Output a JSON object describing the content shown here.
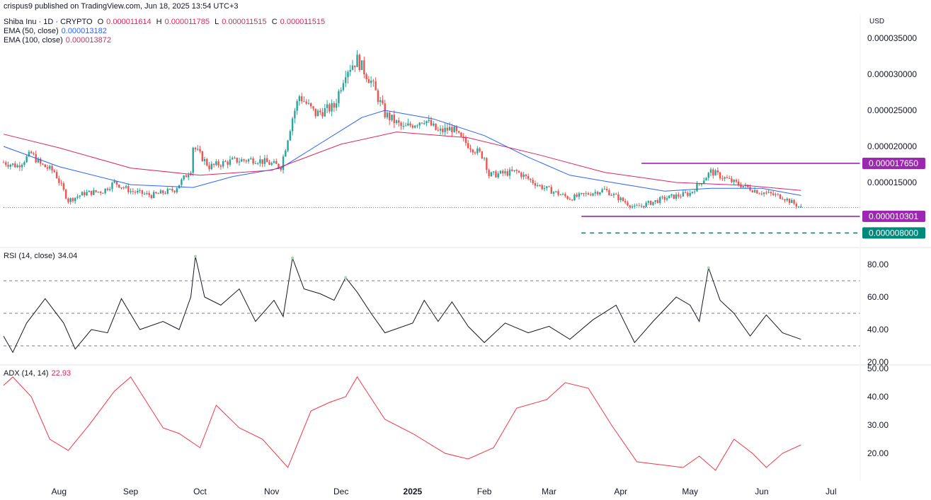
{
  "publish_line": "crispus9 published on TradingView.com, Jun 18, 2025 13:54 UTC+3",
  "symbol": "Shiba Inu · 1D · CRYPTO",
  "ohlc": {
    "o_label": "O",
    "o": "0.000011614",
    "h_label": "H",
    "h": "0.000011785",
    "l_label": "L",
    "l": "0.000011515",
    "c_label": "C",
    "c": "0.000011515"
  },
  "ema50": {
    "label": "EMA (50, close)",
    "value": "0.000013182",
    "color": "#2962ff"
  },
  "ema100": {
    "label": "EMA (100, close)",
    "value": "0.000013872",
    "color": "#e0245e"
  },
  "currency": "USD",
  "rsi": {
    "label": "RSI (14, close)",
    "value": "34.04",
    "color": "#131722"
  },
  "adx": {
    "label": "ADX (14, 14)",
    "value": "22.93",
    "color": "#f23645"
  },
  "colors": {
    "up": "#26a69a",
    "down": "#ef5350",
    "magenta": "#9c27b0",
    "green_level": "#00897b"
  },
  "chart_data": [
    {
      "type": "candlestick",
      "title": "Shiba Inu · 1D · CRYPTO",
      "ylabel": "USD",
      "y_ticks": [
        "0.000035000",
        "0.000030000",
        "0.000025000",
        "0.000020000",
        "0.000015000"
      ],
      "ylim": [
        6.5e-06,
        3.55e-05
      ],
      "x_ticks": [
        "Aug",
        "Sep",
        "Oct",
        "Nov",
        "Dec",
        "2025",
        "Feb",
        "Mar",
        "Apr",
        "May",
        "Jun",
        "Jul"
      ],
      "x_ticks_dates": [
        "2024-08-01",
        "2024-09-01",
        "2024-10-01",
        "2024-11-01",
        "2024-12-01",
        "2025-01-01",
        "2025-02-01",
        "2025-03-01",
        "2025-04-01",
        "2025-05-01",
        "2025-06-01",
        "2025-07-01"
      ],
      "x_range": [
        "2024-07-08",
        "2025-07-13"
      ],
      "price_path": [
        {
          "date": "2024-07-08",
          "price": 1.78e-05
        },
        {
          "date": "2024-07-14",
          "price": 1.73e-05
        },
        {
          "date": "2024-07-20",
          "price": 1.9e-05
        },
        {
          "date": "2024-07-24",
          "price": 1.75e-05
        },
        {
          "date": "2024-07-30",
          "price": 1.65e-05
        },
        {
          "date": "2024-08-03",
          "price": 1.38e-05
        },
        {
          "date": "2024-08-05",
          "price": 1.25e-05
        },
        {
          "date": "2024-08-12",
          "price": 1.35e-05
        },
        {
          "date": "2024-08-20",
          "price": 1.38e-05
        },
        {
          "date": "2024-08-25",
          "price": 1.5e-05
        },
        {
          "date": "2024-09-01",
          "price": 1.38e-05
        },
        {
          "date": "2024-09-10",
          "price": 1.32e-05
        },
        {
          "date": "2024-09-20",
          "price": 1.4e-05
        },
        {
          "date": "2024-09-27",
          "price": 1.68e-05
        },
        {
          "date": "2024-09-28",
          "price": 2e-05
        },
        {
          "date": "2024-10-05",
          "price": 1.72e-05
        },
        {
          "date": "2024-10-15",
          "price": 1.8e-05
        },
        {
          "date": "2024-10-25",
          "price": 1.82e-05
        },
        {
          "date": "2024-11-05",
          "price": 1.72e-05
        },
        {
          "date": "2024-11-10",
          "price": 2.4e-05
        },
        {
          "date": "2024-11-13",
          "price": 2.7e-05
        },
        {
          "date": "2024-11-20",
          "price": 2.45e-05
        },
        {
          "date": "2024-11-28",
          "price": 2.55e-05
        },
        {
          "date": "2024-12-03",
          "price": 3.05e-05
        },
        {
          "date": "2024-12-08",
          "price": 3.2e-05
        },
        {
          "date": "2024-12-14",
          "price": 2.9e-05
        },
        {
          "date": "2024-12-20",
          "price": 2.45e-05
        },
        {
          "date": "2024-12-28",
          "price": 2.25e-05
        },
        {
          "date": "2025-01-06",
          "price": 2.38e-05
        },
        {
          "date": "2025-01-12",
          "price": 2.2e-05
        },
        {
          "date": "2025-01-18",
          "price": 2.25e-05
        },
        {
          "date": "2025-01-22",
          "price": 2.1e-05
        },
        {
          "date": "2025-02-01",
          "price": 1.85e-05
        },
        {
          "date": "2025-02-03",
          "price": 1.6e-05
        },
        {
          "date": "2025-02-15",
          "price": 1.65e-05
        },
        {
          "date": "2025-02-25",
          "price": 1.45e-05
        },
        {
          "date": "2025-03-10",
          "price": 1.28e-05
        },
        {
          "date": "2025-03-25",
          "price": 1.4e-05
        },
        {
          "date": "2025-04-07",
          "price": 1.15e-05
        },
        {
          "date": "2025-04-20",
          "price": 1.28e-05
        },
        {
          "date": "2025-05-01",
          "price": 1.35e-05
        },
        {
          "date": "2025-05-10",
          "price": 1.65e-05
        },
        {
          "date": "2025-05-20",
          "price": 1.5e-05
        },
        {
          "date": "2025-05-30",
          "price": 1.38e-05
        },
        {
          "date": "2025-06-10",
          "price": 1.3e-05
        },
        {
          "date": "2025-06-18",
          "price": 1.15e-05
        }
      ],
      "ema50_path": [
        {
          "date": "2024-07-08",
          "price": 2e-05
        },
        {
          "date": "2024-08-01",
          "price": 1.72e-05
        },
        {
          "date": "2024-09-01",
          "price": 1.47e-05
        },
        {
          "date": "2024-09-28",
          "price": 1.43e-05
        },
        {
          "date": "2024-10-15",
          "price": 1.58e-05
        },
        {
          "date": "2024-11-05",
          "price": 1.7e-05
        },
        {
          "date": "2024-11-20",
          "price": 2e-05
        },
        {
          "date": "2024-12-10",
          "price": 2.4e-05
        },
        {
          "date": "2024-12-20",
          "price": 2.5e-05
        },
        {
          "date": "2025-01-10",
          "price": 2.38e-05
        },
        {
          "date": "2025-02-01",
          "price": 2.15e-05
        },
        {
          "date": "2025-02-20",
          "price": 1.85e-05
        },
        {
          "date": "2025-03-10",
          "price": 1.6e-05
        },
        {
          "date": "2025-04-01",
          "price": 1.48e-05
        },
        {
          "date": "2025-04-20",
          "price": 1.38e-05
        },
        {
          "date": "2025-05-10",
          "price": 1.42e-05
        },
        {
          "date": "2025-06-01",
          "price": 1.42e-05
        },
        {
          "date": "2025-06-18",
          "price": 1.32e-05
        }
      ],
      "ema100_path": [
        {
          "date": "2024-07-08",
          "price": 2.17e-05
        },
        {
          "date": "2024-08-01",
          "price": 1.98e-05
        },
        {
          "date": "2024-09-01",
          "price": 1.7e-05
        },
        {
          "date": "2024-10-01",
          "price": 1.6e-05
        },
        {
          "date": "2024-11-01",
          "price": 1.67e-05
        },
        {
          "date": "2024-12-01",
          "price": 2.03e-05
        },
        {
          "date": "2024-12-25",
          "price": 2.2e-05
        },
        {
          "date": "2025-01-25",
          "price": 2.12e-05
        },
        {
          "date": "2025-02-25",
          "price": 1.88e-05
        },
        {
          "date": "2025-03-25",
          "price": 1.64e-05
        },
        {
          "date": "2025-04-25",
          "price": 1.5e-05
        },
        {
          "date": "2025-05-25",
          "price": 1.46e-05
        },
        {
          "date": "2025-06-18",
          "price": 1.39e-05
        }
      ],
      "current_price": 1.1515e-05,
      "levels": [
        {
          "price": 1.765e-05,
          "label": "0.000017650",
          "style": "solid",
          "color": "#9c27b0",
          "from": "2025-04-10"
        },
        {
          "price": 1.0301e-05,
          "label": "0.000010301",
          "style": "solid",
          "color": "#9c27b0",
          "from": "2025-03-15"
        },
        {
          "price": 8e-06,
          "label": "0.000008000",
          "style": "dashed",
          "color": "#00897b",
          "from": "2025-03-15"
        }
      ]
    },
    {
      "type": "line",
      "title": "RSI (14, close)",
      "y_ticks": [
        "80.00",
        "60.00",
        "40.00",
        "20.00"
      ],
      "ylim": [
        20,
        84
      ],
      "bands": [
        70,
        50,
        30
      ],
      "points": [
        {
          "date": "2024-07-08",
          "y": 36
        },
        {
          "date": "2024-07-12",
          "y": 26
        },
        {
          "date": "2024-07-18",
          "y": 44
        },
        {
          "date": "2024-07-26",
          "y": 59
        },
        {
          "date": "2024-08-03",
          "y": 44
        },
        {
          "date": "2024-08-08",
          "y": 28
        },
        {
          "date": "2024-08-15",
          "y": 40
        },
        {
          "date": "2024-08-22",
          "y": 38
        },
        {
          "date": "2024-08-28",
          "y": 59
        },
        {
          "date": "2024-09-05",
          "y": 40
        },
        {
          "date": "2024-09-15",
          "y": 45
        },
        {
          "date": "2024-09-22",
          "y": 40
        },
        {
          "date": "2024-09-27",
          "y": 60
        },
        {
          "date": "2024-09-29",
          "y": 85
        },
        {
          "date": "2024-10-03",
          "y": 60
        },
        {
          "date": "2024-10-10",
          "y": 55
        },
        {
          "date": "2024-10-18",
          "y": 65
        },
        {
          "date": "2024-10-25",
          "y": 45
        },
        {
          "date": "2024-11-02",
          "y": 58
        },
        {
          "date": "2024-11-06",
          "y": 48
        },
        {
          "date": "2024-11-10",
          "y": 84
        },
        {
          "date": "2024-11-15",
          "y": 65
        },
        {
          "date": "2024-11-22",
          "y": 62
        },
        {
          "date": "2024-11-28",
          "y": 58
        },
        {
          "date": "2024-12-03",
          "y": 72
        },
        {
          "date": "2024-12-08",
          "y": 63
        },
        {
          "date": "2024-12-14",
          "y": 50
        },
        {
          "date": "2024-12-20",
          "y": 38
        },
        {
          "date": "2025-01-01",
          "y": 44
        },
        {
          "date": "2025-01-06",
          "y": 58
        },
        {
          "date": "2025-01-12",
          "y": 45
        },
        {
          "date": "2025-01-18",
          "y": 57
        },
        {
          "date": "2025-01-25",
          "y": 42
        },
        {
          "date": "2025-02-01",
          "y": 32
        },
        {
          "date": "2025-02-10",
          "y": 44
        },
        {
          "date": "2025-02-20",
          "y": 38
        },
        {
          "date": "2025-03-01",
          "y": 42
        },
        {
          "date": "2025-03-10",
          "y": 34
        },
        {
          "date": "2025-03-20",
          "y": 46
        },
        {
          "date": "2025-03-30",
          "y": 55
        },
        {
          "date": "2025-04-07",
          "y": 32
        },
        {
          "date": "2025-04-15",
          "y": 45
        },
        {
          "date": "2025-04-25",
          "y": 60
        },
        {
          "date": "2025-05-01",
          "y": 55
        },
        {
          "date": "2025-05-05",
          "y": 45
        },
        {
          "date": "2025-05-09",
          "y": 78
        },
        {
          "date": "2025-05-14",
          "y": 58
        },
        {
          "date": "2025-05-20",
          "y": 50
        },
        {
          "date": "2025-05-27",
          "y": 36
        },
        {
          "date": "2025-06-03",
          "y": 49
        },
        {
          "date": "2025-06-10",
          "y": 38
        },
        {
          "date": "2025-06-18",
          "y": 34
        }
      ]
    },
    {
      "type": "line",
      "title": "ADX (14, 14)",
      "y_ticks": [
        "50.00",
        "40.00",
        "30.00",
        "20.00"
      ],
      "ylim": [
        9.5,
        50.5
      ],
      "points": [
        {
          "date": "2024-07-08",
          "y": 44
        },
        {
          "date": "2024-07-12",
          "y": 47
        },
        {
          "date": "2024-07-20",
          "y": 40
        },
        {
          "date": "2024-07-28",
          "y": 25
        },
        {
          "date": "2024-08-05",
          "y": 21
        },
        {
          "date": "2024-08-14",
          "y": 30
        },
        {
          "date": "2024-08-25",
          "y": 42
        },
        {
          "date": "2024-09-01",
          "y": 47
        },
        {
          "date": "2024-09-08",
          "y": 38
        },
        {
          "date": "2024-09-15",
          "y": 29
        },
        {
          "date": "2024-09-22",
          "y": 27
        },
        {
          "date": "2024-10-01",
          "y": 22
        },
        {
          "date": "2024-10-08",
          "y": 37
        },
        {
          "date": "2024-10-18",
          "y": 29
        },
        {
          "date": "2024-10-28",
          "y": 25
        },
        {
          "date": "2024-11-08",
          "y": 15
        },
        {
          "date": "2024-11-18",
          "y": 35
        },
        {
          "date": "2024-11-26",
          "y": 38
        },
        {
          "date": "2024-12-03",
          "y": 40
        },
        {
          "date": "2024-12-08",
          "y": 47
        },
        {
          "date": "2024-12-20",
          "y": 32
        },
        {
          "date": "2025-01-01",
          "y": 27
        },
        {
          "date": "2025-01-15",
          "y": 20
        },
        {
          "date": "2025-01-25",
          "y": 18
        },
        {
          "date": "2025-02-05",
          "y": 22
        },
        {
          "date": "2025-02-15",
          "y": 36
        },
        {
          "date": "2025-02-28",
          "y": 39
        },
        {
          "date": "2025-03-08",
          "y": 45
        },
        {
          "date": "2025-03-18",
          "y": 43
        },
        {
          "date": "2025-03-28",
          "y": 30
        },
        {
          "date": "2025-04-08",
          "y": 17
        },
        {
          "date": "2025-04-18",
          "y": 16
        },
        {
          "date": "2025-04-28",
          "y": 15
        },
        {
          "date": "2025-05-05",
          "y": 19
        },
        {
          "date": "2025-05-12",
          "y": 14
        },
        {
          "date": "2025-05-20",
          "y": 25
        },
        {
          "date": "2025-05-28",
          "y": 20
        },
        {
          "date": "2025-06-03",
          "y": 15
        },
        {
          "date": "2025-06-10",
          "y": 20
        },
        {
          "date": "2025-06-18",
          "y": 23
        }
      ]
    }
  ]
}
